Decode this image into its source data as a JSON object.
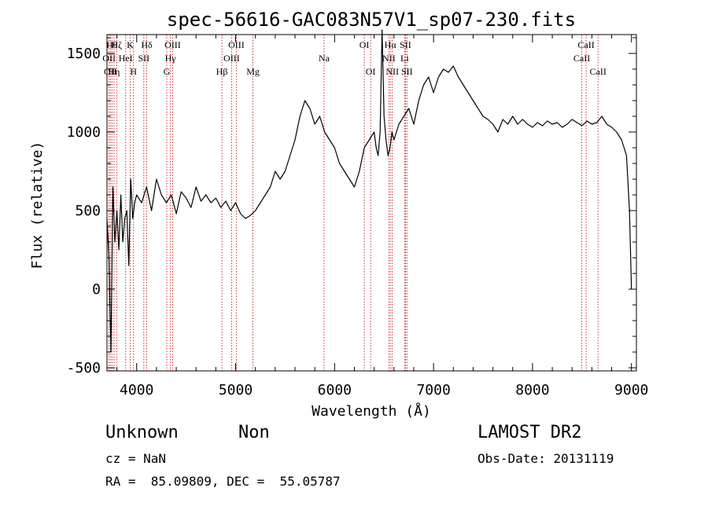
{
  "chart_data": {
    "type": "line",
    "title": "spec-56616-GAC083N57V1_sp07-230.fits",
    "xlabel": "Wavelength (Å)",
    "ylabel": "Flux (relative)",
    "xlim": [
      3700,
      9050
    ],
    "ylim": [
      -520,
      1620
    ],
    "x_ticks": [
      4000,
      5000,
      6000,
      7000,
      8000,
      9000
    ],
    "y_ticks": [
      -500,
      0,
      500,
      1000,
      1500
    ],
    "x_minor_step": 200,
    "y_minor_step": 100,
    "grid": false,
    "series": [
      {
        "x": [
          3700,
          3720,
          3740,
          3760,
          3780,
          3800,
          3820,
          3840,
          3860,
          3880,
          3900,
          3920,
          3940,
          3960,
          3980,
          4000,
          4050,
          4100,
          4150,
          4200,
          4250,
          4300,
          4350,
          4400,
          4450,
          4500,
          4550,
          4600,
          4650,
          4700,
          4750,
          4800,
          4850,
          4900,
          4950,
          5000,
          5050,
          5100,
          5150,
          5200,
          5250,
          5300,
          5350,
          5400,
          5450,
          5500,
          5550,
          5600,
          5650,
          5700,
          5750,
          5800,
          5850,
          5900,
          5950,
          6000,
          6050,
          6100,
          6150,
          6200,
          6250,
          6300,
          6350,
          6400,
          6420,
          6440,
          6460,
          6480,
          6500,
          6520,
          6540,
          6560,
          6580,
          6600,
          6650,
          6700,
          6750,
          6800,
          6850,
          6900,
          6950,
          7000,
          7050,
          7100,
          7150,
          7200,
          7250,
          7300,
          7350,
          7400,
          7450,
          7500,
          7550,
          7600,
          7650,
          7700,
          7750,
          7800,
          7850,
          7900,
          7950,
          8000,
          8050,
          8100,
          8150,
          8200,
          8250,
          8300,
          8350,
          8400,
          8450,
          8500,
          8550,
          8600,
          8650,
          8700,
          8750,
          8800,
          8850,
          8900,
          8950,
          8980,
          9000
        ],
        "y": [
          450,
          200,
          -400,
          650,
          300,
          500,
          250,
          600,
          300,
          450,
          500,
          150,
          700,
          450,
          550,
          600,
          550,
          650,
          500,
          700,
          600,
          550,
          600,
          480,
          620,
          580,
          520,
          650,
          560,
          600,
          550,
          580,
          520,
          560,
          500,
          550,
          480,
          450,
          470,
          500,
          550,
          600,
          650,
          750,
          700,
          750,
          850,
          950,
          1100,
          1200,
          1150,
          1050,
          1100,
          1000,
          950,
          900,
          800,
          750,
          700,
          650,
          750,
          900,
          950,
          1000,
          900,
          850,
          1000,
          1650,
          1100,
          950,
          850,
          900,
          1000,
          950,
          1050,
          1100,
          1150,
          1050,
          1200,
          1300,
          1350,
          1250,
          1350,
          1400,
          1380,
          1420,
          1350,
          1300,
          1250,
          1200,
          1150,
          1100,
          1080,
          1050,
          1000,
          1080,
          1050,
          1100,
          1050,
          1080,
          1050,
          1030,
          1060,
          1040,
          1070,
          1050,
          1060,
          1030,
          1050,
          1080,
          1060,
          1040,
          1070,
          1050,
          1060,
          1100,
          1050,
          1030,
          1000,
          950,
          850,
          500,
          0
        ]
      }
    ],
    "line_color": "#000000",
    "marker_color": "#c00000",
    "lines": [
      {
        "w": 3721,
        "label": "OII",
        "row": 1
      },
      {
        "w": 3734,
        "label": "OII",
        "row": 2
      },
      {
        "w": 3750,
        "label": "Hθ",
        "row": 0
      },
      {
        "w": 3771,
        "label": "Hη",
        "row": 2
      },
      {
        "w": 3798,
        "label": "Hζ",
        "row": 0
      },
      {
        "w": 3889,
        "label": "HeI",
        "row": 1
      },
      {
        "w": 3934,
        "label": "K",
        "row": 0
      },
      {
        "w": 3968,
        "label": "H",
        "row": 2
      },
      {
        "w": 4072,
        "label": "SII",
        "row": 1
      },
      {
        "w": 4102,
        "label": "Hδ",
        "row": 0
      },
      {
        "w": 4304,
        "label": "G",
        "row": 2
      },
      {
        "w": 4341,
        "label": "Hγ",
        "row": 1
      },
      {
        "w": 4363,
        "label": "OIII",
        "row": 0
      },
      {
        "w": 4861,
        "label": "Hβ",
        "row": 2
      },
      {
        "w": 4959,
        "label": "OIII",
        "row": 1
      },
      {
        "w": 5007,
        "label": "OIII",
        "row": 0
      },
      {
        "w": 5175,
        "label": "Mg",
        "row": 2
      },
      {
        "w": 5894,
        "label": "Na",
        "row": 1
      },
      {
        "w": 6300,
        "label": "OI",
        "row": 0
      },
      {
        "w": 6364,
        "label": "OI",
        "row": 2
      },
      {
        "w": 6548,
        "label": "NII",
        "row": 1
      },
      {
        "w": 6563,
        "label": "Hα",
        "row": 0
      },
      {
        "w": 6583,
        "label": "NII",
        "row": 2
      },
      {
        "w": 6708,
        "label": "Li",
        "row": 1
      },
      {
        "w": 6716,
        "label": "SII",
        "row": 0
      },
      {
        "w": 6731,
        "label": "SII",
        "row": 2
      },
      {
        "w": 8498,
        "label": "CaII",
        "row": 1
      },
      {
        "w": 8542,
        "label": "CaII",
        "row": 0
      },
      {
        "w": 8662,
        "label": "CaII",
        "row": 2
      }
    ]
  },
  "info": {
    "class_label": "Unknown",
    "subclass_label": "Non",
    "survey": "LAMOST DR2",
    "cz": "cz = NaN",
    "obs_date": "Obs-Date: 20131119",
    "radec": "RA =  85.09809, DEC =  55.05787"
  }
}
